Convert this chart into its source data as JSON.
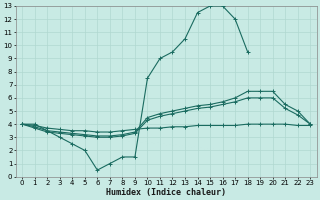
{
  "xlabel": "Humidex (Indice chaleur)",
  "xlim": [
    -0.5,
    23.5
  ],
  "ylim": [
    0,
    13
  ],
  "xticks": [
    0,
    1,
    2,
    3,
    4,
    5,
    6,
    7,
    8,
    9,
    10,
    11,
    12,
    13,
    14,
    15,
    16,
    17,
    18,
    19,
    20,
    21,
    22,
    23
  ],
  "yticks": [
    0,
    1,
    2,
    3,
    4,
    5,
    6,
    7,
    8,
    9,
    10,
    11,
    12,
    13
  ],
  "bg_color": "#c8eae4",
  "line_color": "#1a6b60",
  "grid_major_color": "#b0d8d0",
  "grid_minor_color": "#d0ece8",
  "series": [
    {
      "x": [
        0,
        1,
        2,
        3,
        4,
        5,
        6,
        7,
        8,
        9,
        10,
        11,
        12,
        13,
        14,
        15,
        16,
        17,
        18,
        19,
        20,
        21,
        22,
        23
      ],
      "y": [
        4,
        4,
        3.5,
        3,
        2.5,
        2,
        0.5,
        1,
        1.5,
        1.5,
        7.5,
        9.0,
        9.5,
        10.5,
        12.5,
        13,
        13,
        12,
        9.5,
        null,
        null,
        null,
        null,
        null
      ]
    },
    {
      "x": [
        0,
        1,
        2,
        3,
        4,
        5,
        6,
        7,
        8,
        9,
        10,
        11,
        12,
        13,
        14,
        15,
        16,
        17,
        18,
        19,
        20,
        21,
        22,
        23
      ],
      "y": [
        4,
        3.8,
        3.5,
        3.4,
        3.3,
        3.2,
        3.1,
        3.1,
        3.2,
        3.4,
        4.5,
        4.8,
        5.0,
        5.2,
        5.4,
        5.5,
        5.7,
        6.0,
        6.5,
        6.5,
        6.5,
        5.5,
        5.0,
        4
      ]
    },
    {
      "x": [
        0,
        1,
        2,
        3,
        4,
        5,
        6,
        7,
        8,
        9,
        10,
        11,
        12,
        13,
        14,
        15,
        16,
        17,
        18,
        19,
        20,
        21,
        22,
        23
      ],
      "y": [
        4,
        3.7,
        3.4,
        3.3,
        3.2,
        3.1,
        3.0,
        3.0,
        3.1,
        3.3,
        4.3,
        4.6,
        4.8,
        5.0,
        5.2,
        5.3,
        5.5,
        5.7,
        6.0,
        6.0,
        6.0,
        5.2,
        4.7,
        4
      ]
    },
    {
      "x": [
        0,
        1,
        2,
        3,
        4,
        5,
        6,
        7,
        8,
        9,
        10,
        11,
        12,
        13,
        14,
        15,
        16,
        17,
        18,
        19,
        20,
        21,
        22,
        23
      ],
      "y": [
        4.0,
        3.9,
        3.7,
        3.6,
        3.5,
        3.5,
        3.4,
        3.4,
        3.5,
        3.6,
        3.7,
        3.7,
        3.8,
        3.8,
        3.9,
        3.9,
        3.9,
        3.9,
        4.0,
        4.0,
        4.0,
        4.0,
        3.9,
        3.9
      ]
    }
  ]
}
